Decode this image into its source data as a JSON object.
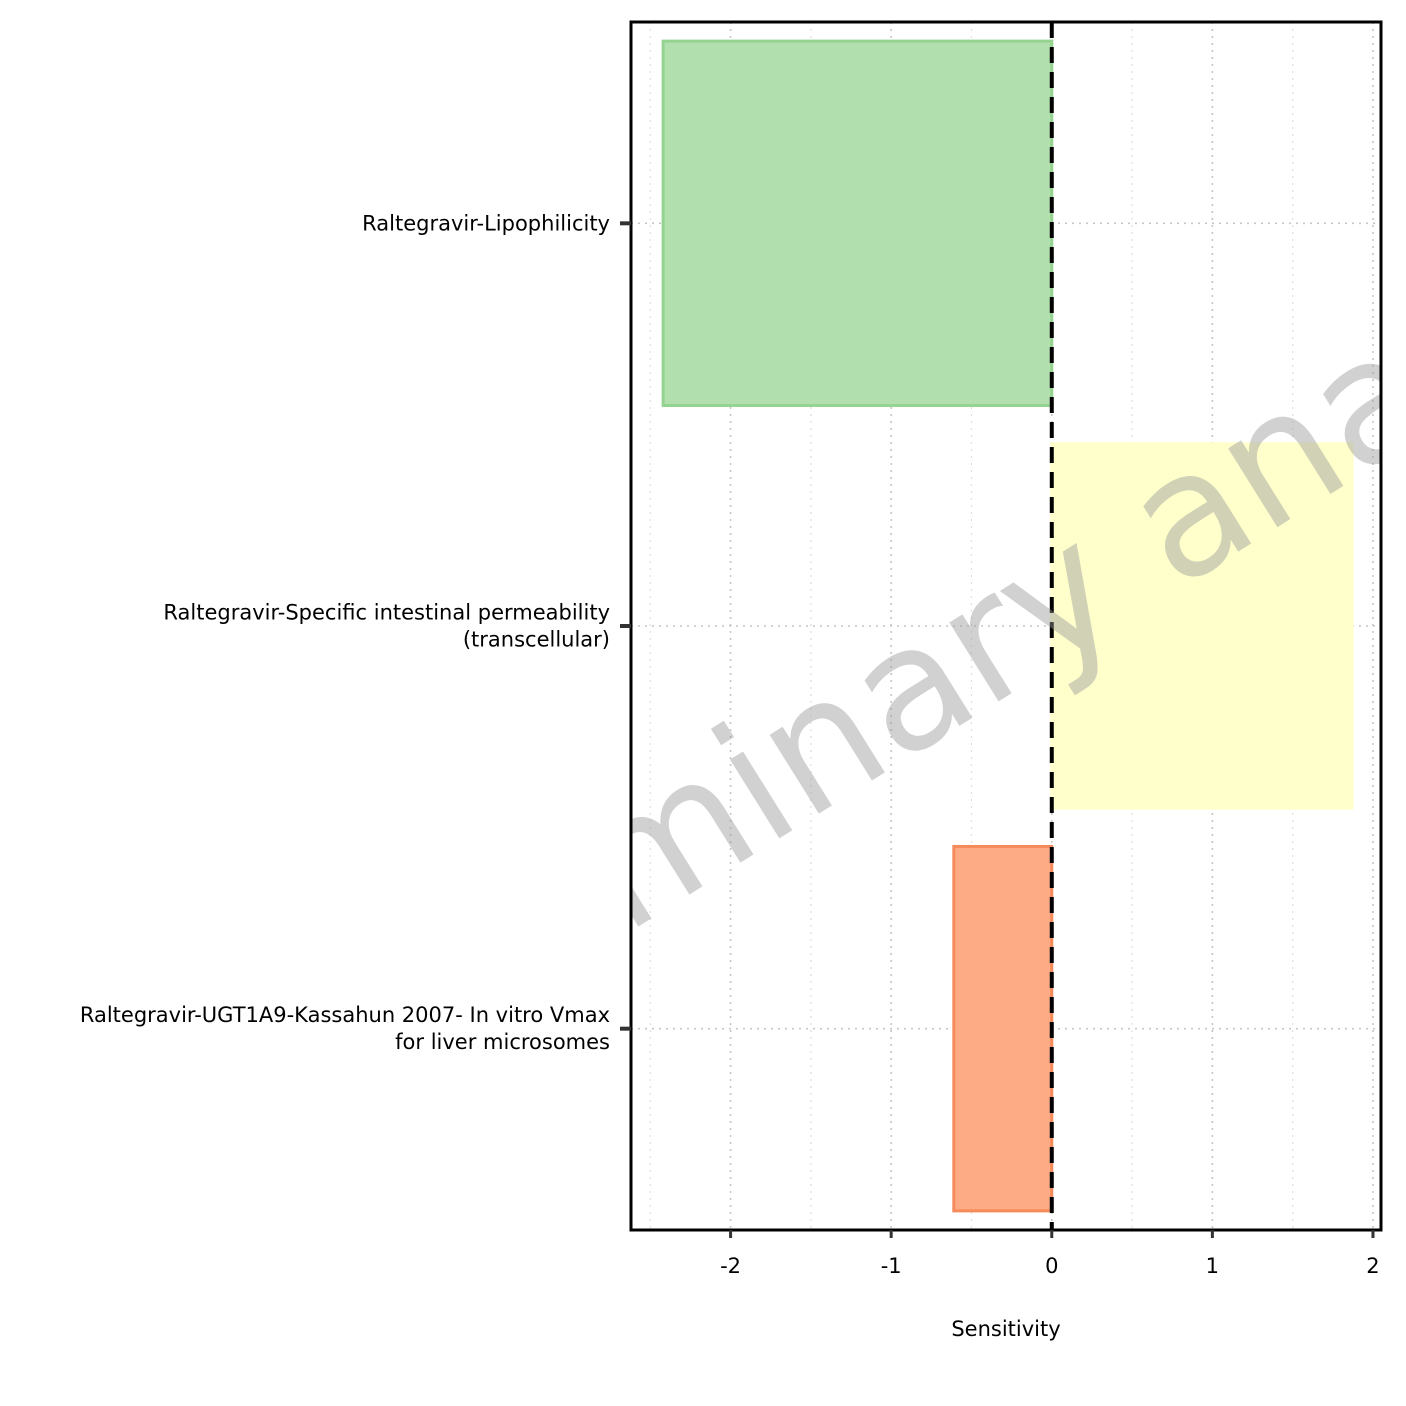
{
  "chart_data": {
    "type": "bar",
    "orientation": "horizontal",
    "categories": [
      [
        "Raltegravir-Lipophilicity"
      ],
      [
        "Raltegravir-Specific intestinal permeability",
        "(transcellular)"
      ],
      [
        "Raltegravir-UGT1A9-Kassahun 2007- In vitro Vmax",
        "for liver microsomes"
      ]
    ],
    "values": [
      -2.42,
      1.87,
      -0.61
    ],
    "colors": [
      "#b2dfae",
      "#ffffcc",
      "#fcab85"
    ],
    "edge_colors": [
      "#94d390",
      "#ffffcc",
      "#f58a5a"
    ],
    "xlabel": "Sensitivity",
    "ylabel": "",
    "xlim": [
      -2.62,
      2.05
    ],
    "xticks": [
      "-2",
      "-1",
      "0",
      "1",
      "2"
    ],
    "reference_line": 0,
    "grid": true,
    "watermark": "Preliminary analysis"
  }
}
